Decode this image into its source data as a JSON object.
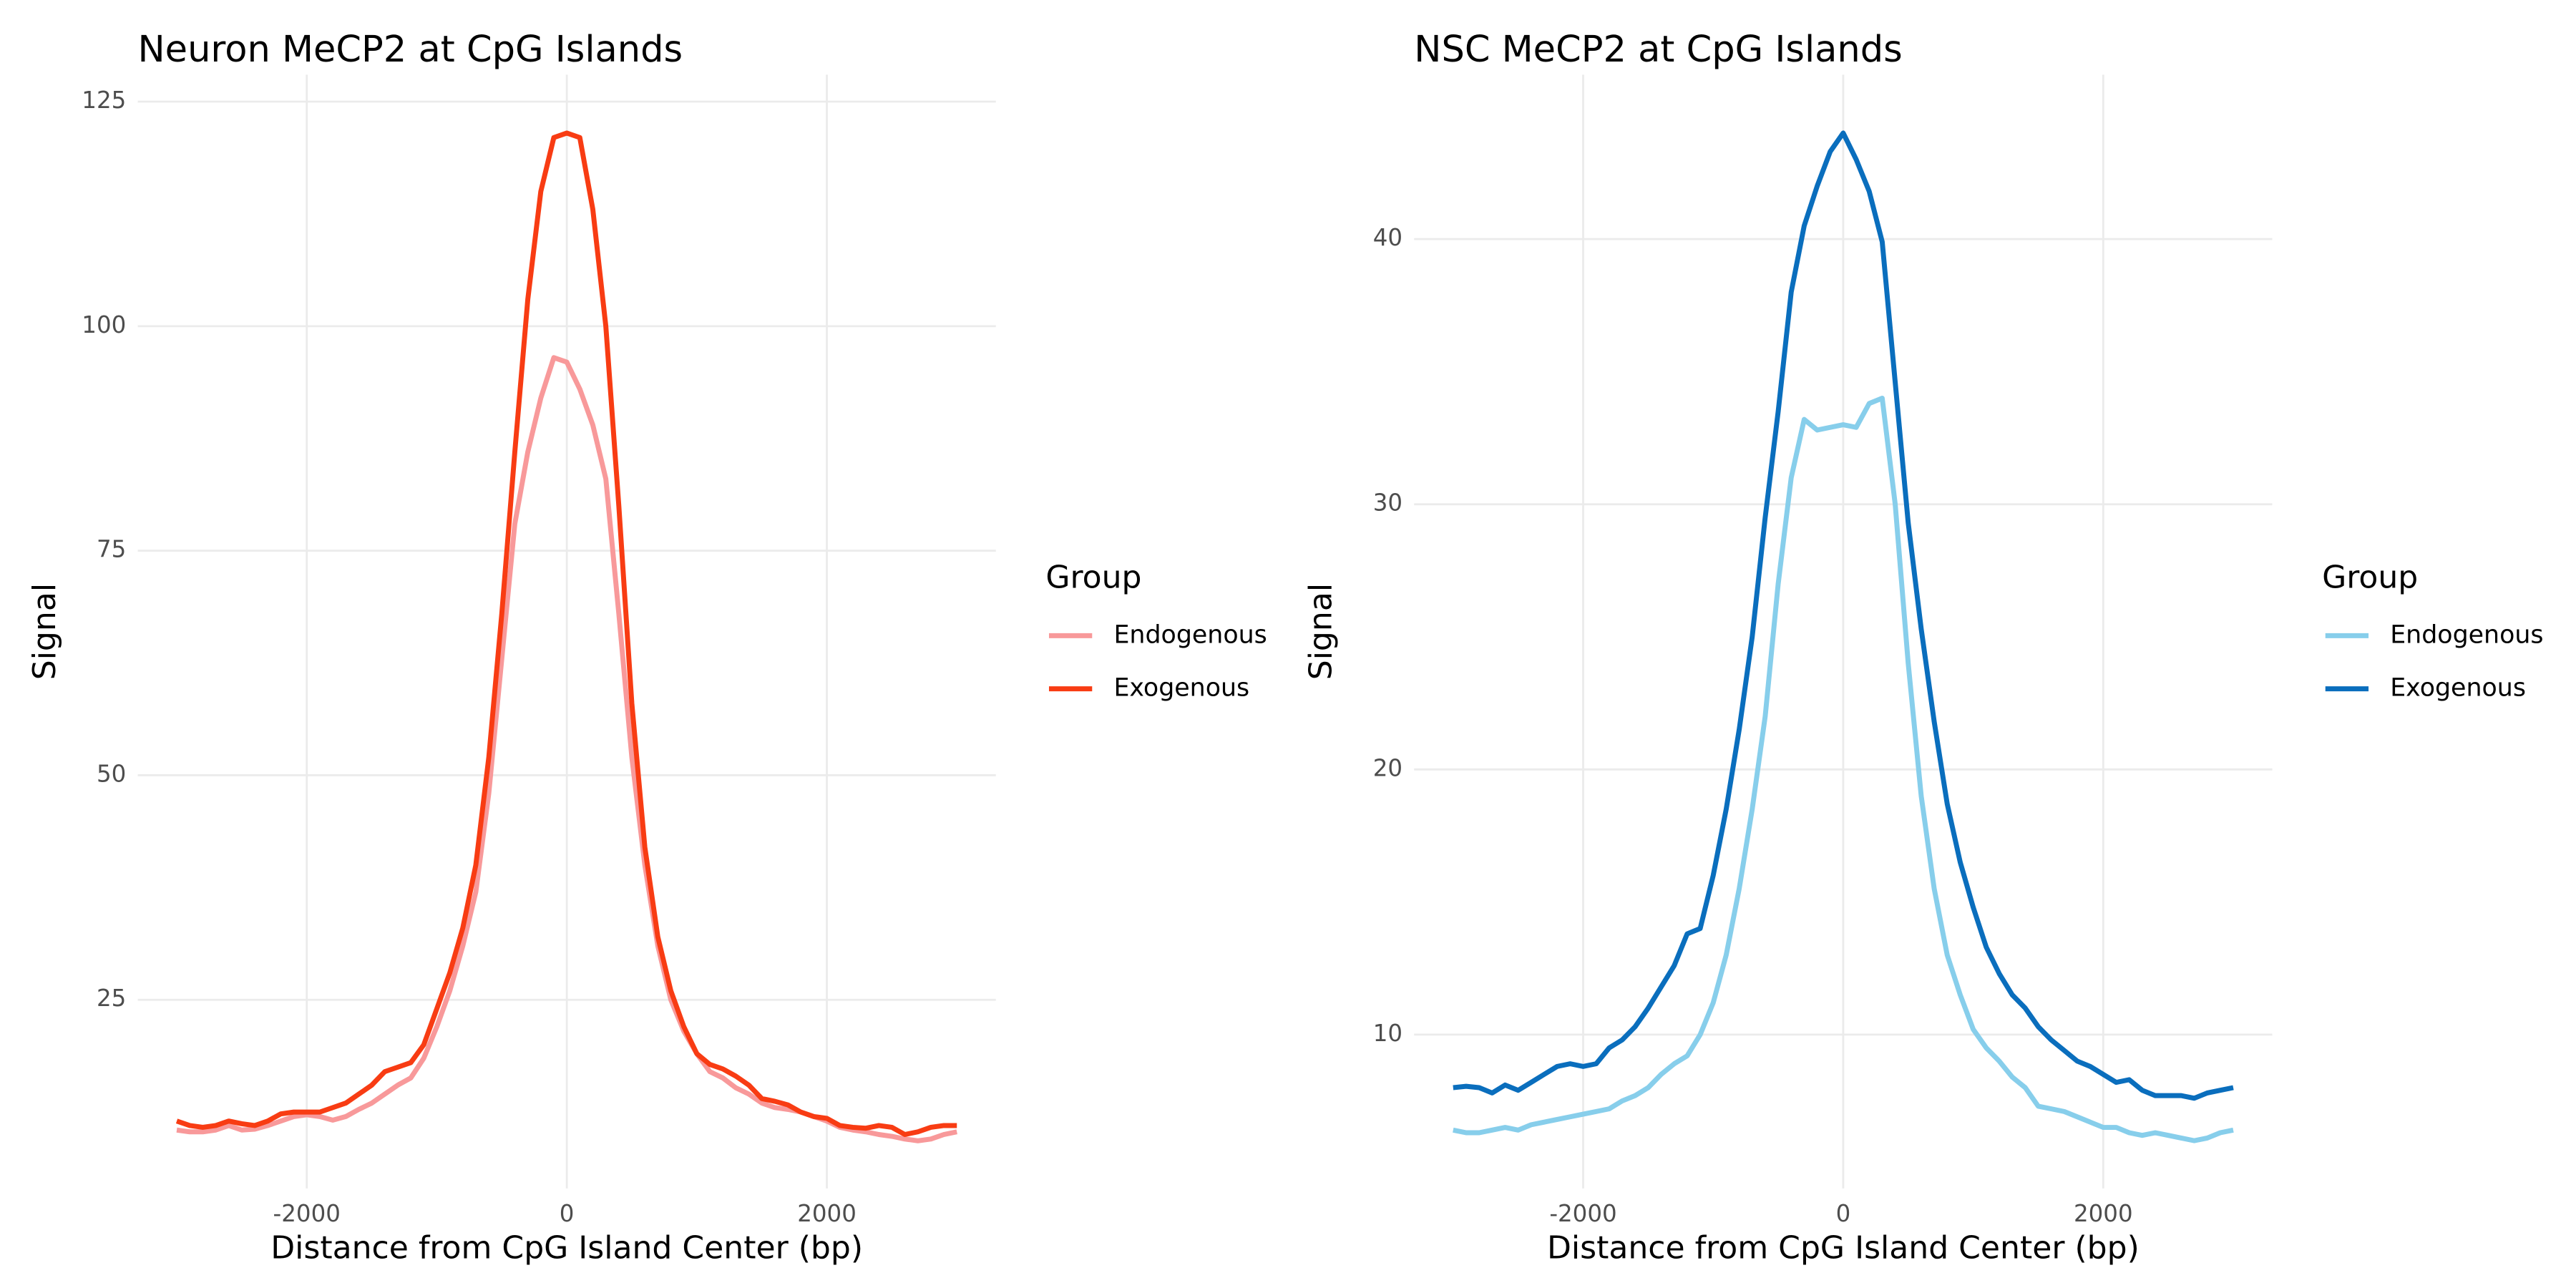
{
  "chart_data": [
    {
      "type": "line",
      "title": "Neuron MeCP2 at CpG Islands",
      "xlabel": "Distance from CpG Island Center (bp)",
      "ylabel": "Signal",
      "legend_title": "Group",
      "x": [
        -3000,
        -2900,
        -2800,
        -2700,
        -2600,
        -2500,
        -2400,
        -2300,
        -2200,
        -2100,
        -2000,
        -1900,
        -1800,
        -1700,
        -1600,
        -1500,
        -1400,
        -1300,
        -1200,
        -1100,
        -1000,
        -900,
        -800,
        -700,
        -600,
        -500,
        -400,
        -300,
        -200,
        -100,
        0,
        100,
        200,
        300,
        400,
        500,
        600,
        700,
        800,
        900,
        1000,
        1100,
        1200,
        1300,
        1400,
        1500,
        1600,
        1700,
        1800,
        1900,
        2000,
        2100,
        2200,
        2300,
        2400,
        2500,
        2600,
        2700,
        2800,
        2900,
        3000
      ],
      "series": [
        {
          "name": "Endogenous",
          "color": "#f8999a",
          "values": [
            10.5,
            10.3,
            10.3,
            10.5,
            11,
            10.5,
            10.6,
            11,
            11.5,
            12,
            12.2,
            12,
            11.6,
            12,
            12.8,
            13.5,
            14.5,
            15.5,
            16.3,
            18.5,
            22,
            26,
            31,
            37,
            48,
            63,
            78,
            86,
            92,
            96.5,
            96,
            93,
            89,
            83,
            68,
            52,
            40,
            31,
            25,
            21.5,
            19,
            17,
            16.3,
            15.2,
            14.5,
            13.5,
            13,
            12.8,
            12.5,
            12,
            11.5,
            10.8,
            10.5,
            10.3,
            10,
            9.8,
            9.5,
            9.3,
            9.5,
            10,
            10.3
          ]
        },
        {
          "name": "Exogenous",
          "color": "#f83c13",
          "values": [
            11.5,
            11,
            10.8,
            11,
            11.5,
            11.2,
            11,
            11.5,
            12.3,
            12.5,
            12.5,
            12.5,
            13,
            13.5,
            14.5,
            15.5,
            17,
            17.5,
            18,
            20,
            24,
            28,
            33,
            40,
            52,
            68,
            86,
            103,
            115,
            121,
            121.5,
            121,
            113,
            100,
            80,
            58,
            42,
            32,
            26,
            22,
            19,
            17.8,
            17.3,
            16.5,
            15.5,
            14,
            13.7,
            13.3,
            12.5,
            12,
            11.8,
            11,
            10.8,
            10.7,
            11,
            10.8,
            10,
            10.3,
            10.8,
            11,
            11
          ]
        }
      ],
      "xlim": [
        -3300,
        3300
      ],
      "ylim": [
        4,
        128
      ],
      "xticks": [
        -2000,
        0,
        2000
      ],
      "yticks": [
        25,
        50,
        75,
        100,
        125
      ],
      "grid": true
    },
    {
      "type": "line",
      "title": "NSC MeCP2 at CpG Islands",
      "xlabel": "Distance from CpG Island Center (bp)",
      "ylabel": "Signal",
      "legend_title": "Group",
      "x": [
        -3000,
        -2900,
        -2800,
        -2700,
        -2600,
        -2500,
        -2400,
        -2300,
        -2200,
        -2100,
        -2000,
        -1900,
        -1800,
        -1700,
        -1600,
        -1500,
        -1400,
        -1300,
        -1200,
        -1100,
        -1000,
        -900,
        -800,
        -700,
        -600,
        -500,
        -400,
        -300,
        -200,
        -100,
        0,
        100,
        200,
        300,
        400,
        500,
        600,
        700,
        800,
        900,
        1000,
        1100,
        1200,
        1300,
        1400,
        1500,
        1600,
        1700,
        1800,
        1900,
        2000,
        2100,
        2200,
        2300,
        2400,
        2500,
        2600,
        2700,
        2800,
        2900,
        3000
      ],
      "series": [
        {
          "name": "Endogenous",
          "color": "#87ceeb",
          "values": [
            6.4,
            6.3,
            6.3,
            6.4,
            6.5,
            6.4,
            6.6,
            6.7,
            6.8,
            6.9,
            7,
            7.1,
            7.2,
            7.5,
            7.7,
            8,
            8.5,
            8.9,
            9.2,
            10,
            11.2,
            13,
            15.5,
            18.5,
            22,
            27,
            31,
            33.2,
            32.8,
            32.9,
            33,
            32.9,
            33.8,
            34,
            30,
            24,
            19,
            15.5,
            13,
            11.5,
            10.2,
            9.5,
            9,
            8.4,
            8,
            7.3,
            7.2,
            7.1,
            6.9,
            6.7,
            6.5,
            6.5,
            6.3,
            6.2,
            6.3,
            6.2,
            6.1,
            6,
            6.1,
            6.3,
            6.4
          ]
        },
        {
          "name": "Exogenous",
          "color": "#0a6ebd",
          "values": [
            8,
            8.05,
            8,
            7.8,
            8.1,
            7.9,
            8.2,
            8.5,
            8.8,
            8.9,
            8.8,
            8.9,
            9.5,
            9.8,
            10.3,
            11,
            11.8,
            12.6,
            13.8,
            14,
            16,
            18.5,
            21.5,
            25,
            29.5,
            33.5,
            38,
            40.5,
            42,
            43.3,
            44,
            43,
            41.8,
            39.9,
            34.6,
            29.3,
            25.3,
            21.8,
            18.7,
            16.5,
            14.8,
            13.3,
            12.3,
            11.5,
            11,
            10.3,
            9.8,
            9.4,
            9,
            8.8,
            8.5,
            8.2,
            8.3,
            7.9,
            7.7,
            7.7,
            7.7,
            7.6,
            7.8,
            7.9,
            8
          ]
        }
      ],
      "xlim": [
        -3300,
        3300
      ],
      "ylim": [
        4.2,
        46.2
      ],
      "xticks": [
        -2000,
        0,
        2000
      ],
      "yticks": [
        10,
        20,
        30,
        40
      ],
      "grid": true
    }
  ]
}
